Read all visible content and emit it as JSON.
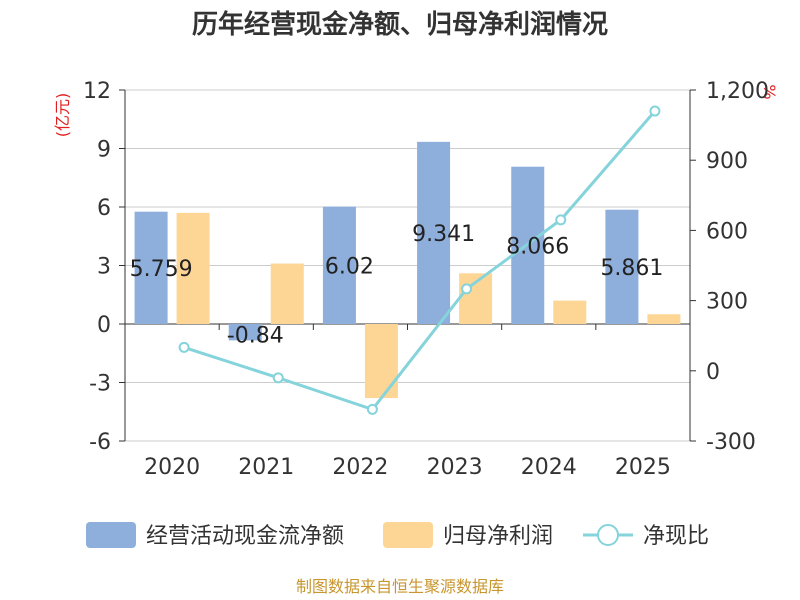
{
  "chart_data": {
    "type": "bar",
    "title": "历年经营现金净额、归母净利润情况",
    "categories": [
      "2020",
      "2021",
      "2022",
      "2023",
      "2024",
      "2025"
    ],
    "left_axis": {
      "unit_label": "(亿元)",
      "ylim": [
        -6,
        12
      ],
      "ticks": [
        -6,
        -3,
        0,
        3,
        6,
        9,
        12
      ]
    },
    "right_axis": {
      "unit_label": "%",
      "ylim": [
        -300,
        1200
      ],
      "ticks": [
        -300,
        0,
        300,
        600,
        900,
        1200
      ],
      "tick_labels": [
        "-300",
        "0",
        "300",
        "600",
        "900",
        "1,200"
      ]
    },
    "series": [
      {
        "name": "经营活动现金流净额",
        "kind": "bar",
        "axis": "left",
        "color": "#8eaedc",
        "values": [
          5.759,
          -0.84,
          6.02,
          9.341,
          8.066,
          5.861
        ],
        "labels": [
          "5.759",
          "-0.84",
          "6.02",
          "9.341",
          "8.066",
          "5.861"
        ]
      },
      {
        "name": "归母净利润",
        "kind": "bar",
        "axis": "left",
        "color": "#fdd696",
        "values": [
          5.7,
          3.1,
          -3.8,
          2.6,
          1.2,
          0.5
        ]
      },
      {
        "name": "净现比",
        "kind": "line",
        "axis": "right",
        "color": "#85d3db",
        "values": [
          100,
          -30,
          -165,
          350,
          645,
          1110
        ]
      }
    ],
    "source": "制图数据来自恒生聚源数据库"
  }
}
